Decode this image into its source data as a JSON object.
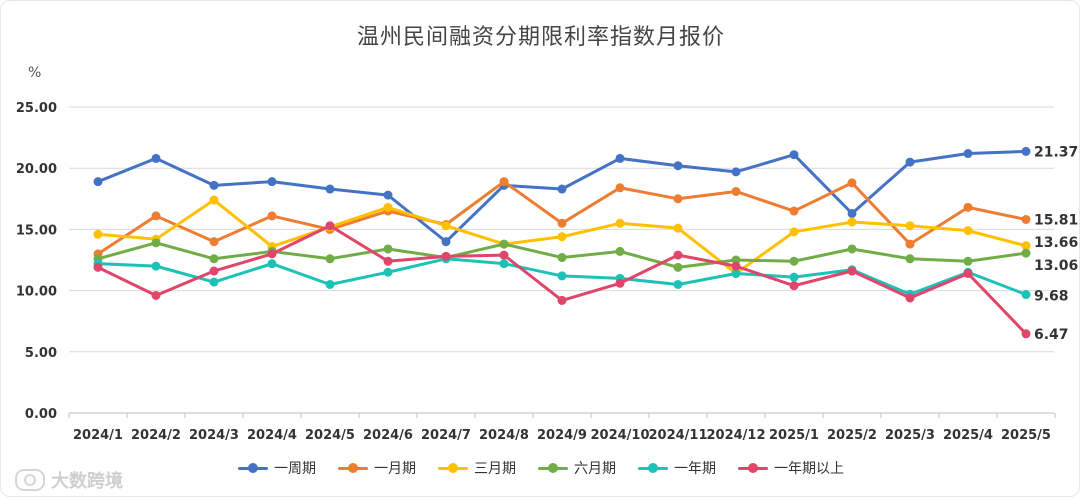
{
  "chart_data": {
    "type": "line",
    "title": "温州民间融资分期限利率指数月报价",
    "ylabel": "%",
    "xlabel": "",
    "ylim": [
      0,
      25
    ],
    "yticks": [
      "0.00",
      "5.00",
      "10.00",
      "15.00",
      "20.00",
      "25.00"
    ],
    "grid": true,
    "legend_position": "bottom",
    "categories": [
      "2024/1",
      "2024/2",
      "2024/3",
      "2024/4",
      "2024/5",
      "2024/6",
      "2024/7",
      "2024/8",
      "2024/9",
      "2024/10",
      "2024/11",
      "2024/12",
      "2025/1",
      "2025/2",
      "2025/3",
      "2025/4",
      "2025/5"
    ],
    "series": [
      {
        "name": "一周期",
        "color": "#4472C4",
        "end_label": "21.37",
        "values": [
          18.9,
          20.8,
          18.6,
          18.9,
          18.3,
          17.8,
          14.0,
          18.6,
          18.3,
          20.8,
          20.2,
          19.7,
          21.1,
          16.3,
          20.5,
          21.2,
          21.37
        ]
      },
      {
        "name": "一月期",
        "color": "#ED7D31",
        "end_label": "15.81",
        "values": [
          13.0,
          16.1,
          14.0,
          16.1,
          15.0,
          16.5,
          15.4,
          18.9,
          15.5,
          18.4,
          17.5,
          18.1,
          16.5,
          18.8,
          13.8,
          16.8,
          15.81
        ]
      },
      {
        "name": "三月期",
        "color": "#FFC000",
        "end_label": "13.66",
        "values": [
          14.6,
          14.2,
          17.4,
          13.6,
          15.2,
          16.8,
          15.3,
          13.8,
          14.4,
          15.5,
          15.1,
          11.4,
          14.8,
          15.6,
          15.3,
          14.9,
          13.66
        ]
      },
      {
        "name": "六月期",
        "color": "#70AD47",
        "end_label": "13.06",
        "values": [
          12.6,
          13.9,
          12.6,
          13.2,
          12.6,
          13.4,
          12.7,
          13.8,
          12.7,
          13.2,
          11.9,
          12.5,
          12.4,
          13.4,
          12.6,
          12.4,
          13.06
        ]
      },
      {
        "name": "一年期",
        "color": "#1CC2B6",
        "end_label": "9.68",
        "values": [
          12.2,
          12.0,
          10.7,
          12.2,
          10.5,
          11.5,
          12.6,
          12.2,
          11.2,
          11.0,
          10.5,
          11.4,
          11.1,
          11.7,
          9.7,
          11.5,
          9.68
        ]
      },
      {
        "name": "一年期以上",
        "color": "#E0456A",
        "end_label": "6.47",
        "values": [
          11.9,
          9.6,
          11.6,
          13.0,
          15.3,
          12.4,
          12.8,
          12.9,
          9.2,
          10.6,
          12.9,
          12.0,
          10.4,
          11.6,
          9.4,
          11.4,
          6.47
        ]
      }
    ]
  },
  "watermark": "大数跨境"
}
